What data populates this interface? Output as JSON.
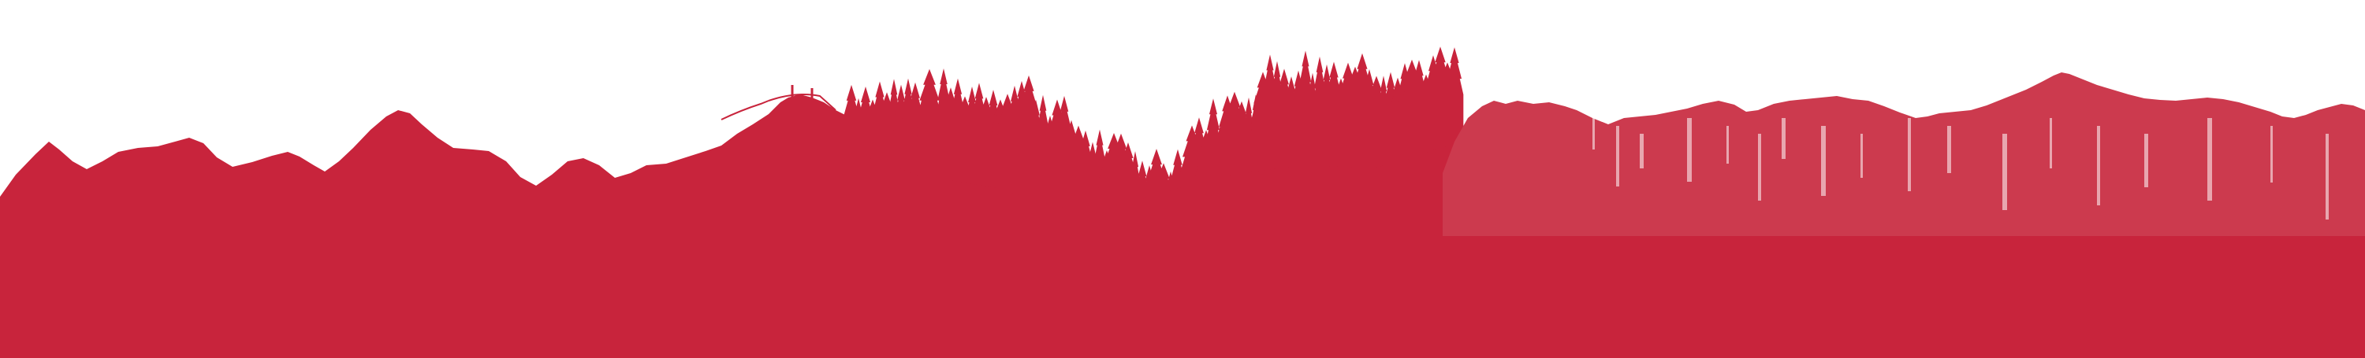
{
  "banner": {
    "subject": "mountain-and-forest-silhouette",
    "colors": {
      "background": "#ffffff",
      "silhouette": "#c8243c",
      "silhouette_light": "#cc3a4e",
      "streak": "#ffffff"
    }
  }
}
